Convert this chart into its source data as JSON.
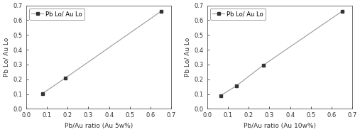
{
  "left": {
    "x": [
      0.08,
      0.19,
      0.65
    ],
    "y": [
      0.105,
      0.21,
      0.66
    ],
    "xlabel": "Pb/Au ratio (Au 5w%)",
    "ylabel": "Pb Lo/ Au Lo",
    "legend": "Pb Lo/ Au Lo",
    "xlim": [
      0.0,
      0.7
    ],
    "ylim": [
      0.0,
      0.7
    ],
    "xticks": [
      0.0,
      0.1,
      0.2,
      0.3,
      0.4,
      0.5,
      0.6,
      0.7
    ],
    "yticks": [
      0.0,
      0.1,
      0.2,
      0.3,
      0.4,
      0.5,
      0.6,
      0.7
    ]
  },
  "right": {
    "x": [
      0.065,
      0.14,
      0.27,
      0.65
    ],
    "y": [
      0.09,
      0.155,
      0.295,
      0.66
    ],
    "xlabel": "Pb/Au ratio (Au 10w%)",
    "ylabel": "Pb Lo/ Au Lo",
    "legend": "Pb Lo/ Au Lo",
    "xlim": [
      0.0,
      0.7
    ],
    "ylim": [
      0.0,
      0.7
    ],
    "xticks": [
      0.0,
      0.1,
      0.2,
      0.3,
      0.4,
      0.5,
      0.6,
      0.7
    ],
    "yticks": [
      0.0,
      0.1,
      0.2,
      0.3,
      0.4,
      0.5,
      0.6,
      0.7
    ]
  },
  "line_color": "#999999",
  "marker_color": "#333333",
  "marker": "s",
  "markersize": 3.5,
  "linewidth": 0.8,
  "fontsize_label": 6.5,
  "fontsize_tick": 6,
  "fontsize_legend": 6,
  "background": "#ffffff"
}
